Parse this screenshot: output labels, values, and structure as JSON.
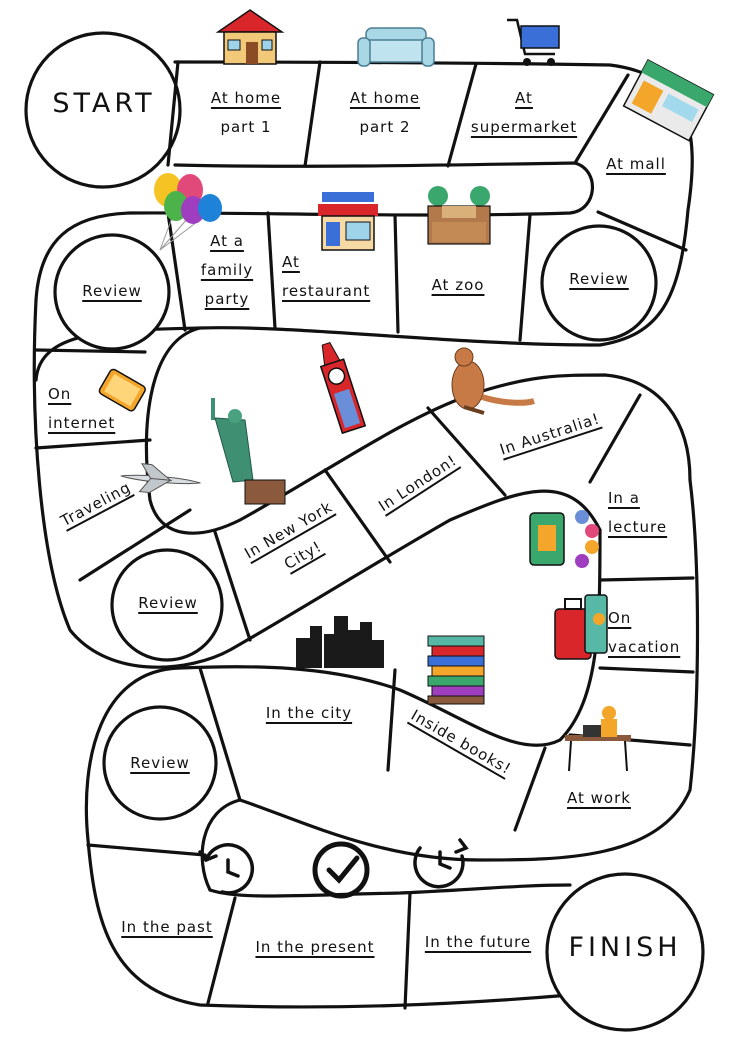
{
  "board": {
    "start": "START",
    "finish": "FINISH",
    "spaces": [
      {
        "id": "at-home-part-1",
        "lines": [
          "At home",
          "part 1"
        ]
      },
      {
        "id": "at-home-part-2",
        "lines": [
          "At home",
          "part 2"
        ]
      },
      {
        "id": "at-supermarket",
        "lines": [
          "At",
          "supermarket"
        ]
      },
      {
        "id": "at-mall",
        "lines": [
          "At mall"
        ]
      },
      {
        "id": "review-1",
        "lines": [
          "Review"
        ]
      },
      {
        "id": "at-zoo",
        "lines": [
          "At zoo"
        ]
      },
      {
        "id": "at-restaurant",
        "lines": [
          "At",
          "restaurant"
        ]
      },
      {
        "id": "at-family-party",
        "lines": [
          "At a",
          "family",
          "party"
        ]
      },
      {
        "id": "review-2",
        "lines": [
          "Review"
        ]
      },
      {
        "id": "on-internet",
        "lines": [
          "On",
          "internet"
        ]
      },
      {
        "id": "traveling",
        "lines": [
          "Traveling"
        ]
      },
      {
        "id": "review-3",
        "lines": [
          "Review"
        ]
      },
      {
        "id": "in-new-york-city",
        "lines": [
          "In New York",
          "City!"
        ]
      },
      {
        "id": "in-london",
        "lines": [
          "In London!"
        ]
      },
      {
        "id": "in-australia",
        "lines": [
          "In Australia!"
        ]
      },
      {
        "id": "in-a-lecture",
        "lines": [
          "In a",
          "lecture"
        ]
      },
      {
        "id": "on-vacation",
        "lines": [
          "On",
          "vacation"
        ]
      },
      {
        "id": "at-work",
        "lines": [
          "At work"
        ]
      },
      {
        "id": "inside-books",
        "lines": [
          "Inside books!"
        ]
      },
      {
        "id": "in-the-city",
        "lines": [
          "In the city"
        ]
      },
      {
        "id": "review-4",
        "lines": [
          "Review"
        ]
      },
      {
        "id": "in-the-past",
        "lines": [
          "In the past"
        ]
      },
      {
        "id": "in-the-present",
        "lines": [
          "In the present"
        ]
      },
      {
        "id": "in-the-future",
        "lines": [
          "In the future"
        ]
      }
    ]
  },
  "icons": [
    "house-icon",
    "sofa-icon",
    "shopping-cart-icon",
    "mall-icon",
    "balloons-icon",
    "restaurant-icon",
    "zoo-icon",
    "tablet-icon",
    "airplane-icon",
    "statue-of-liberty-icon",
    "big-ben-icon",
    "kangaroo-icon",
    "lecture-icon",
    "luggage-icon",
    "desk-worker-icon",
    "books-icon",
    "city-skyline-icon",
    "past-clock-icon",
    "present-clock-icon",
    "future-clock-icon"
  ],
  "colors": {
    "line": "#111111",
    "background": "#ffffff",
    "accent_red": "#d9262b",
    "accent_green": "#3aa76d",
    "accent_teal": "#57b8a6"
  }
}
